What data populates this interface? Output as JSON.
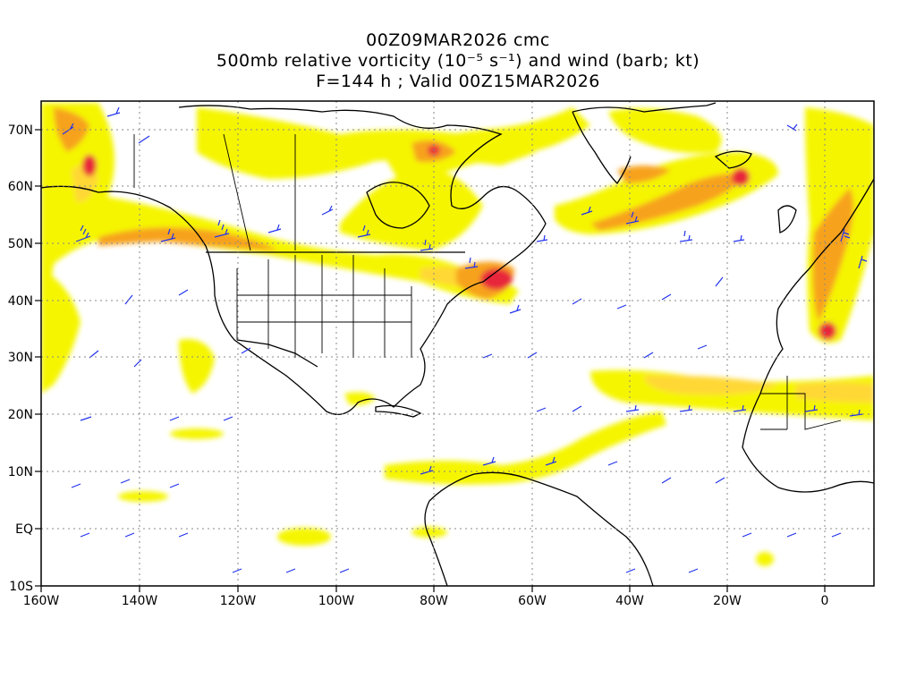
{
  "title": {
    "line1": "00Z09MAR2026 cmc",
    "line2": "500mb relative vorticity (10⁻⁵ s⁻¹) and wind (barb; kt)",
    "line3": "F=144 h ; Valid 00Z15MAR2026"
  },
  "axes": {
    "x_ticks": [
      "160W",
      "140W",
      "120W",
      "100W",
      "80W",
      "60W",
      "40W",
      "20W",
      "0"
    ],
    "y_ticks": [
      "70N",
      "60N",
      "50N",
      "40N",
      "30N",
      "20N",
      "10N",
      "EQ",
      "10S"
    ]
  },
  "colors": {
    "shade_low": "#f5f500",
    "shade_mid": "#ffd836",
    "shade_high": "#f7a21e",
    "shade_max": "#e8283a",
    "coast": "#000000",
    "barb": "#2233ee",
    "grid": "#888888"
  }
}
